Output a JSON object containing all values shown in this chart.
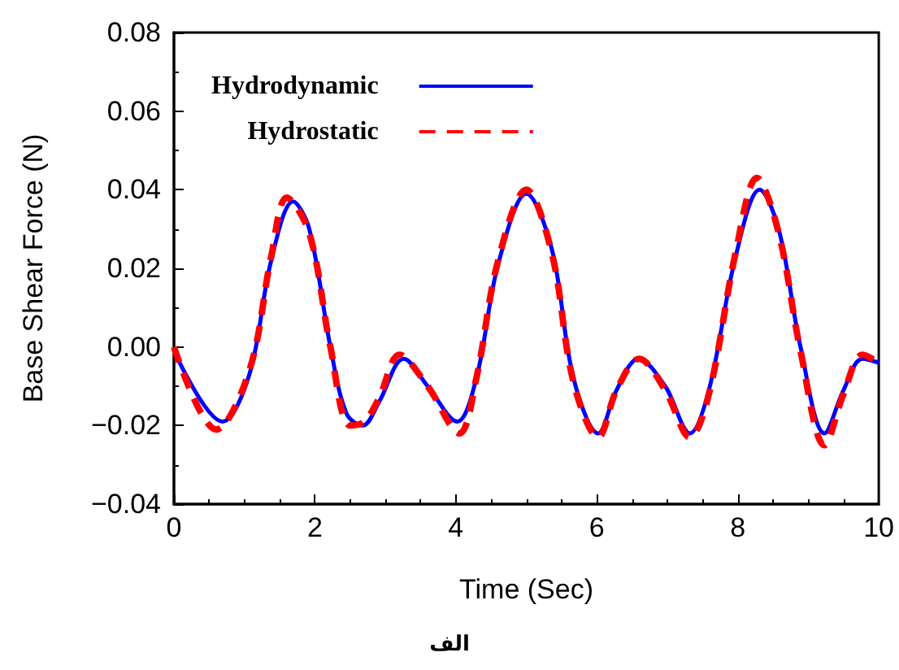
{
  "chart_data": {
    "type": "line",
    "xlabel": "Time (Sec)",
    "ylabel": "Base Shear Force (N)",
    "annotations": [
      "الف"
    ],
    "xlim": [
      0,
      10
    ],
    "xticks": [
      0,
      2,
      4,
      6,
      8,
      10
    ],
    "ylim": [
      -0.04,
      0.08
    ],
    "yticks": [
      {
        "value": -0.04,
        "label": "−0.04"
      },
      {
        "value": -0.02,
        "label": "−0.02"
      },
      "0.00",
      0.02,
      0.04,
      0.06,
      0.08
    ],
    "grid": false,
    "legend": "top left",
    "marker": "none",
    "series": [
      {
        "name": "Hydrodynamic",
        "color": "#0000ff",
        "line_style": "solid",
        "x": [
          0,
          0.69,
          1.07,
          1.38,
          1.69,
          1.92,
          2.22,
          2.45,
          2.68,
          2.91,
          3.26,
          3.6,
          4.02,
          4.29,
          4.6,
          5.0,
          5.36,
          5.67,
          6.02,
          6.28,
          6.59,
          6.97,
          7.32,
          7.59,
          7.97,
          8.31,
          8.58,
          8.89,
          9.23,
          9.5,
          9.77,
          10
        ],
        "values": [
          -0.001,
          -0.019,
          -0.007,
          0.022,
          0.037,
          0.03,
          0.0,
          -0.017,
          -0.02,
          -0.014,
          -0.003,
          -0.01,
          -0.019,
          -0.008,
          0.021,
          0.039,
          0.025,
          -0.008,
          -0.022,
          -0.011,
          -0.003,
          -0.01,
          -0.022,
          -0.011,
          0.023,
          0.04,
          0.03,
          0.0,
          -0.022,
          -0.011,
          -0.003,
          -0.004
        ]
      },
      {
        "name": "Hydrostatic",
        "color": "#ff0000",
        "line_style": "dashed",
        "x": [
          0,
          0.6,
          1.07,
          1.38,
          1.6,
          1.92,
          2.22,
          2.5,
          2.7,
          2.91,
          3.2,
          3.6,
          4.05,
          4.29,
          4.6,
          5.0,
          5.36,
          5.67,
          6.02,
          6.28,
          6.6,
          6.97,
          7.32,
          7.59,
          7.97,
          8.27,
          8.58,
          8.89,
          9.23,
          9.5,
          9.77,
          10
        ],
        "values": [
          0.0,
          -0.021,
          -0.006,
          0.023,
          0.038,
          0.029,
          0.0,
          -0.02,
          -0.019,
          -0.013,
          -0.002,
          -0.01,
          -0.022,
          -0.008,
          0.022,
          0.04,
          0.024,
          -0.009,
          -0.023,
          -0.011,
          -0.003,
          -0.011,
          -0.023,
          -0.012,
          0.024,
          0.043,
          0.029,
          -0.001,
          -0.025,
          -0.012,
          -0.002,
          -0.004
        ]
      }
    ]
  }
}
